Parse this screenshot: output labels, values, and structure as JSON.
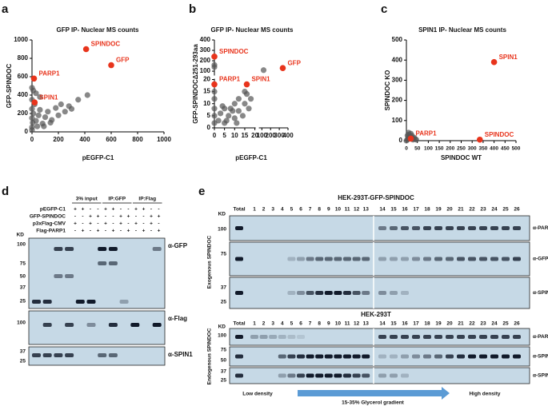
{
  "panel_labels": [
    "a",
    "b",
    "c",
    "d",
    "e"
  ],
  "chart_data": [
    {
      "type": "scatter",
      "title": "GFP IP- Nuclear MS counts",
      "x_label": "pEGFP-C1",
      "y_label": "GFP-SPINDOC",
      "xlim": [
        0,
        1000
      ],
      "ylim": [
        0,
        1000
      ],
      "xticks": [
        0,
        200,
        400,
        600,
        800,
        1000
      ],
      "yticks": [
        0,
        200,
        400,
        600,
        800,
        1000
      ],
      "series": [
        {
          "color": "#555555",
          "x": [
            0,
            0,
            0,
            0,
            5,
            10,
            20,
            30,
            40,
            50,
            60,
            80,
            100,
            120,
            150,
            180,
            200,
            220,
            250,
            280,
            300,
            350,
            420,
            30,
            60,
            90,
            140,
            10,
            0,
            0
          ],
          "y": [
            50,
            150,
            250,
            350,
            100,
            200,
            300,
            120,
            60,
            180,
            240,
            90,
            160,
            220,
            130,
            260,
            180,
            300,
            220,
            280,
            250,
            350,
            400,
            420,
            380,
            60,
            100,
            450,
            480,
            20
          ]
        }
      ],
      "point_color": "#e8341c",
      "points": [
        {
          "label": "SPINDOC",
          "x": 410,
          "y": 900
        },
        {
          "label": "GFP",
          "x": 600,
          "y": 726
        },
        {
          "label": "PARP1",
          "x": 15,
          "y": 580
        },
        {
          "label": "SPIN1",
          "x": 20,
          "y": 320
        }
      ]
    },
    {
      "type": "scatter",
      "title": "GFP IP- Nuclear MS counts",
      "x_label": "pEGFP-C1",
      "y_label": "GFP-SPINDOCΔ251-293aa",
      "xlim": [
        0,
        400
      ],
      "ylim": [
        0,
        400
      ],
      "xbreak": 20,
      "ybreak": 20,
      "xticks": [
        0,
        5,
        10,
        15,
        20,
        100,
        200,
        300,
        400
      ],
      "yticks": [
        0,
        5,
        10,
        15,
        20,
        100,
        200,
        300,
        400
      ],
      "series": [
        {
          "color": "#555555",
          "x": [
            0,
            0,
            0,
            0,
            0,
            0,
            0,
            2,
            3,
            5,
            5,
            7,
            8,
            10,
            10,
            12,
            12,
            15,
            15,
            17,
            18,
            4,
            6,
            9,
            11,
            14,
            120,
            16
          ],
          "y": [
            160,
            140,
            2,
            5,
            8,
            12,
            15,
            3,
            6,
            2,
            8,
            5,
            8,
            4,
            10,
            7,
            12,
            10,
            15,
            8,
            12,
            9,
            3,
            7,
            2,
            5,
            110,
            14
          ]
        }
      ],
      "point_color": "#e8341c",
      "points": [
        {
          "label": "SPINDOC",
          "x": 0,
          "y": 240
        },
        {
          "label": "GFP",
          "x": 340,
          "y": 130
        },
        {
          "label": "PARP1",
          "x": 0,
          "y": 18
        },
        {
          "label": "SPIN1",
          "x": 16,
          "y": 18
        }
      ]
    },
    {
      "type": "scatter",
      "title": "SPIN1 IP- Nuclear MS counts",
      "x_label": "SPINDOC WT",
      "y_label": "SPINDOC KO",
      "xlim": [
        0,
        500
      ],
      "ylim": [
        0,
        500
      ],
      "xticks": [
        0,
        50,
        100,
        150,
        200,
        250,
        300,
        350,
        400,
        450,
        500
      ],
      "yticks": [
        0,
        100,
        200,
        300,
        400,
        500
      ],
      "series": [
        {
          "color": "#555555",
          "x": [
            0,
            5,
            10,
            15,
            20,
            25,
            30,
            35,
            40,
            5,
            10,
            15,
            20,
            30,
            45,
            10,
            25,
            8
          ],
          "y": [
            0,
            5,
            10,
            15,
            20,
            10,
            5,
            15,
            8,
            25,
            30,
            20,
            35,
            10,
            5,
            40,
            25,
            12
          ]
        }
      ],
      "point_color": "#e8341c",
      "points": [
        {
          "label": "SPIN1",
          "x": 400,
          "y": 390
        },
        {
          "label": "SPINDOC",
          "x": 335,
          "y": 5
        },
        {
          "label": "PARP1",
          "x": 20,
          "y": 10
        }
      ]
    }
  ],
  "blot_d": {
    "groups": [
      "3% input",
      "IP:GFP",
      "IP:Flag"
    ],
    "rows": [
      {
        "label": "pEGFP-C1",
        "signs": [
          "+",
          "+",
          "-",
          "-",
          "+",
          "+",
          "-",
          "-",
          "+",
          "+",
          "-",
          "-"
        ]
      },
      {
        "label": "GFP-SPINDOC",
        "signs": [
          "-",
          "-",
          "+",
          "+",
          "-",
          "-",
          "+",
          "+",
          "-",
          "-",
          "+",
          "+"
        ]
      },
      {
        "label": "p3xFlag-CMV",
        "signs": [
          "+",
          "-",
          "+",
          "-",
          "+",
          "-",
          "+",
          "-",
          "+",
          "-",
          "+",
          "-"
        ]
      },
      {
        "label": "Flag-PARP1",
        "signs": [
          "-",
          "+",
          "-",
          "+",
          "-",
          "+",
          "-",
          "+",
          "-",
          "+",
          "-",
          "+"
        ]
      }
    ],
    "kd_label": "KD",
    "panels": [
      {
        "antibody": "α-GFP",
        "markers": [
          100,
          75,
          50,
          37,
          25
        ]
      },
      {
        "antibody": "α-Flag",
        "markers": [
          100
        ]
      },
      {
        "antibody": "α-SPIN1",
        "markers": [
          37,
          25
        ]
      }
    ]
  },
  "blot_e": {
    "sections": [
      {
        "title": "HEK-293T-GFP-SPINDOC",
        "side_label": "Exogenous SPINDOC",
        "kd_label": "KD",
        "lanes": [
          "Total",
          1,
          2,
          3,
          4,
          5,
          6,
          7,
          8,
          9,
          10,
          11,
          12,
          13,
          14,
          15,
          16,
          17,
          18,
          19,
          20,
          21,
          22,
          23,
          24,
          25,
          26
        ],
        "panels": [
          {
            "antibody": "α-PARP1",
            "markers": [
              100
            ]
          },
          {
            "antibody": "α-GFP",
            "markers": [
              75
            ]
          },
          {
            "antibody": "α-SPIN1",
            "markers": [
              37,
              25
            ]
          }
        ]
      },
      {
        "title": "HEK-293T",
        "side_label": "Endogenous SPINDOC",
        "kd_label": "KD",
        "lanes": [
          "Total",
          1,
          2,
          3,
          4,
          5,
          6,
          7,
          8,
          9,
          10,
          11,
          12,
          13,
          14,
          15,
          16,
          17,
          18,
          19,
          20,
          21,
          22,
          23,
          24,
          25,
          26
        ],
        "panels": [
          {
            "antibody": "α-PARP1",
            "markers": [
              100
            ]
          },
          {
            "antibody": "α-SPINDOC",
            "markers": [
              75,
              50
            ]
          },
          {
            "antibody": "α-SPIN1",
            "markers": [
              37,
              25
            ]
          }
        ]
      }
    ],
    "gradient": {
      "low": "Low density",
      "label": "15-35% Glycerol gradient",
      "high": "High density"
    }
  }
}
